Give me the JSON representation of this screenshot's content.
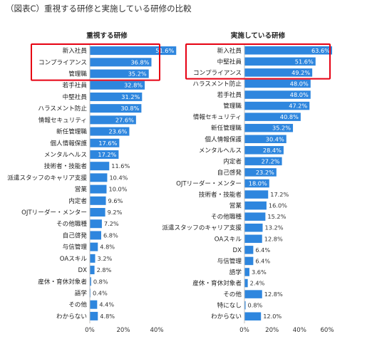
{
  "page_title": "（図表C）重視する研修と実施している研修の比較",
  "colors": {
    "bar": "#2e86de",
    "highlight_box": "#e60012",
    "value_on_bar": "#ffffff",
    "value_outside": "#333333"
  },
  "chart_data": [
    {
      "type": "bar",
      "orientation": "horizontal",
      "title": "重視する研修",
      "categories": [
        "新入社員",
        "コンプライアンス",
        "管理職",
        "若手社員",
        "中堅社員",
        "ハラスメント防止",
        "情報セキュリティ",
        "新任管理職",
        "個人情報保護",
        "メンタルヘルス",
        "技術者・技能者",
        "派遣スタッフのキャリア支援",
        "営業",
        "内定者",
        "OJTリーダー・メンター",
        "その他職種",
        "自己啓発",
        "与信管理",
        "OAスキル",
        "DX",
        "産休・育休対象者",
        "語学",
        "その他",
        "わからない"
      ],
      "values": [
        51.6,
        36.8,
        35.2,
        32.8,
        31.2,
        30.8,
        27.6,
        23.6,
        17.6,
        17.2,
        11.6,
        10.4,
        10.0,
        9.6,
        9.2,
        7.2,
        6.8,
        4.8,
        3.2,
        2.8,
        0.8,
        0.4,
        4.4,
        4.8
      ],
      "value_labels": [
        "51.6%",
        "36.8%",
        "35.2%",
        "32.8%",
        "31.2%",
        "30.8%",
        "27.6%",
        "23.6%",
        "17.6%",
        "17.2%",
        "11.6%",
        "10.4%",
        "10.0%",
        "9.6%",
        "9.2%",
        "7.2%",
        "6.8%",
        "4.8%",
        "3.2%",
        "2.8%",
        "0.8%",
        "0.4%",
        "4.4%",
        "4.8%"
      ],
      "highlighted_categories": [
        "新入社員",
        "コンプライアンス",
        "管理職"
      ],
      "xlim": [
        0,
        40
      ],
      "x_ticks": [
        "0%",
        "20%",
        "40%"
      ]
    },
    {
      "type": "bar",
      "orientation": "horizontal",
      "title": "実施している研修",
      "categories": [
        "新入社員",
        "中堅社員",
        "コンプライアンス",
        "ハラスメント防止",
        "若手社員",
        "管理職",
        "情報セキュリティ",
        "新任管理職",
        "個人情報保護",
        "メンタルヘルス",
        "内定者",
        "自己啓発",
        "OJTリーダー・メンター",
        "技術者・技能者",
        "営業",
        "その他職種",
        "派遣スタッフのキャリア支援",
        "OAスキル",
        "DX",
        "与信管理",
        "語学",
        "産休・育休対象者",
        "その他",
        "特になし",
        "わからない"
      ],
      "values": [
        63.6,
        51.6,
        49.2,
        48.0,
        48.0,
        47.2,
        40.8,
        35.2,
        30.4,
        28.4,
        27.2,
        23.2,
        18.0,
        17.2,
        16.0,
        15.2,
        13.2,
        12.8,
        6.4,
        6.4,
        3.6,
        2.4,
        12.8,
        0.8,
        12.0
      ],
      "value_labels": [
        "63.6%",
        "51.6%",
        "49.2%",
        "48.0%",
        "48.0%",
        "47.2%",
        "40.8%",
        "35.2%",
        "30.4%",
        "28.4%",
        "27.2%",
        "23.2%",
        "18.0%",
        "17.2%",
        "16.0%",
        "15.2%",
        "13.2%",
        "12.8%",
        "6.4%",
        "6.4%",
        "3.6%",
        "2.4%",
        "12.8%",
        "0.8%",
        "12.0%"
      ],
      "highlighted_categories": [
        "新入社員",
        "中堅社員",
        "コンプライアンス"
      ],
      "xlim": [
        0,
        60
      ],
      "x_ticks": [
        "0%",
        "20%",
        "40%",
        "60%"
      ]
    }
  ]
}
